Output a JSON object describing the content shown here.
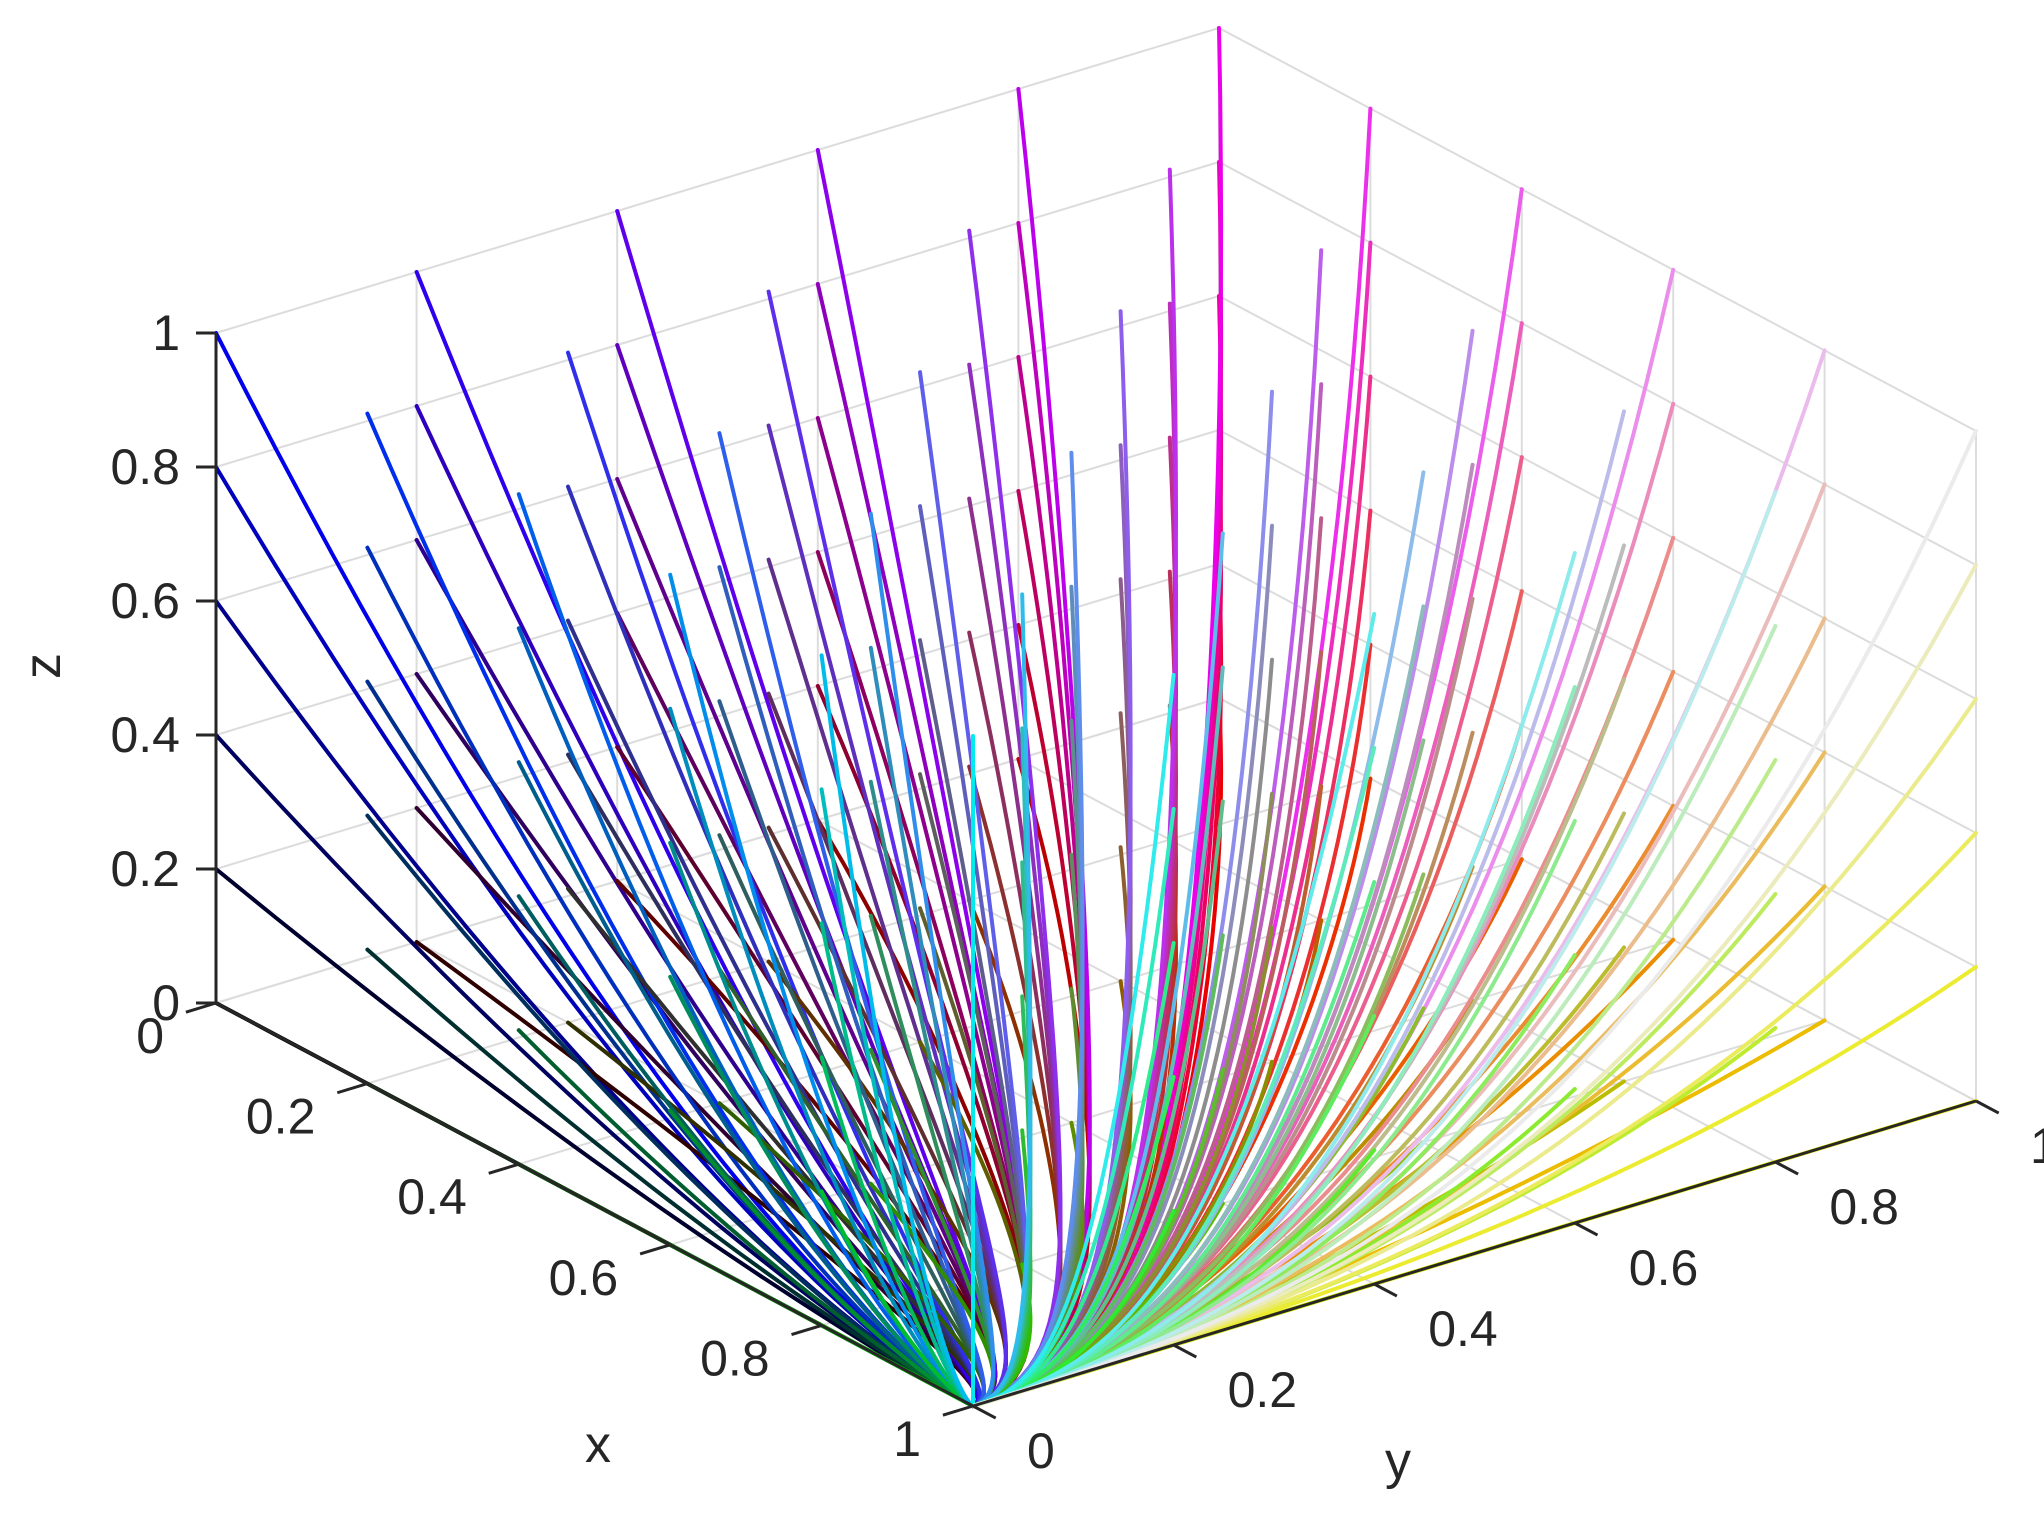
{
  "chart_data": {
    "type": "line",
    "plot_kind": "3d-trajectories",
    "title": "",
    "xlabel": "x",
    "ylabel": "y",
    "zlabel": "z",
    "xlim": [
      0,
      1
    ],
    "ylim": [
      0,
      1
    ],
    "zlim": [
      0,
      1
    ],
    "grid": true,
    "legend": "none",
    "view": "3d-perspective, x toward lower-left, y toward lower-right, z up",
    "x_ticks": [
      "0",
      "0.2",
      "0.4",
      "0.6",
      "0.8",
      "1"
    ],
    "y_ticks": [
      "0",
      "0.2",
      "0.4",
      "0.6",
      "0.8",
      "1"
    ],
    "z_ticks": [
      "0",
      "0.2",
      "0.4",
      "0.6",
      "0.8",
      "1"
    ],
    "colormap": "trajectory colour = rgb(y0, x0, z0) of starting point",
    "start_grid": {
      "x": [
        0,
        0.2,
        0.4,
        0.6,
        0.8,
        1
      ],
      "y": [
        0,
        0.2,
        0.4,
        0.6,
        0.8,
        1
      ],
      "z": [
        0,
        0.2,
        0.4,
        0.6,
        0.8,
        1
      ]
    },
    "end_point": [
      1,
      0,
      0
    ],
    "series_description": "Each trajectory starts at a grid point (x0, y0, z0) and converges to the common end point (x=1, y=0, z=0)."
  }
}
